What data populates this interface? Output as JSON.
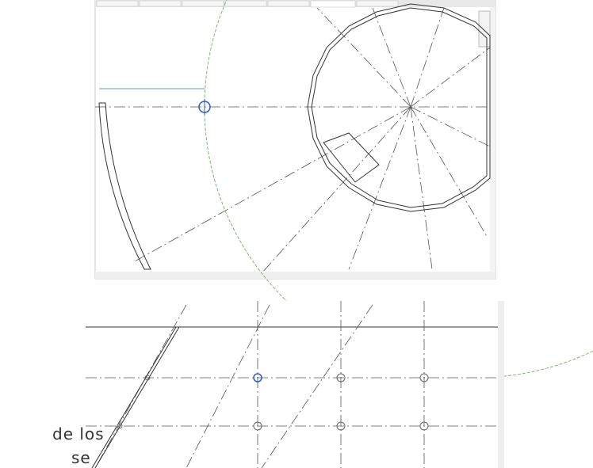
{
  "text_fragments": [
    "de los",
    "se"
  ]
}
